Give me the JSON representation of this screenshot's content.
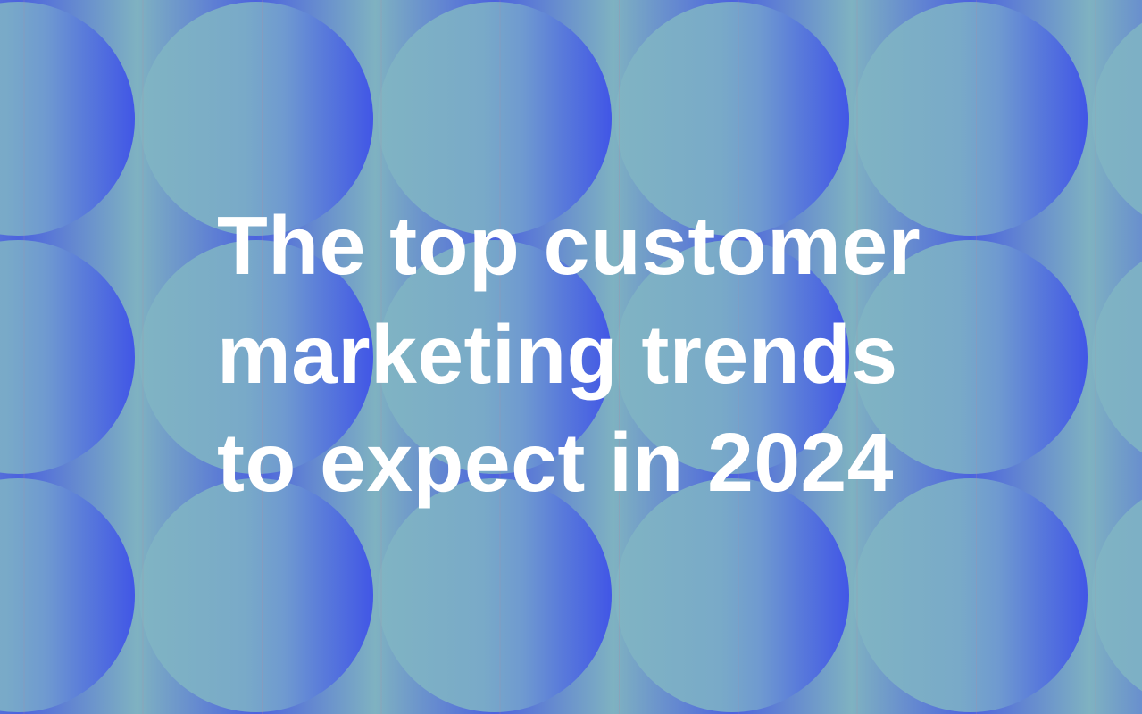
{
  "title": {
    "lines": [
      "The top customer",
      "marketing trends",
      "to expect in 2024"
    ]
  },
  "theme": {
    "background_teal": "#7fb2c1",
    "circle_teal_edge": "#80b4c3",
    "accent_blue": "#4156e6",
    "gap_blue": "#4c63de",
    "text_color": "#ffffff"
  }
}
